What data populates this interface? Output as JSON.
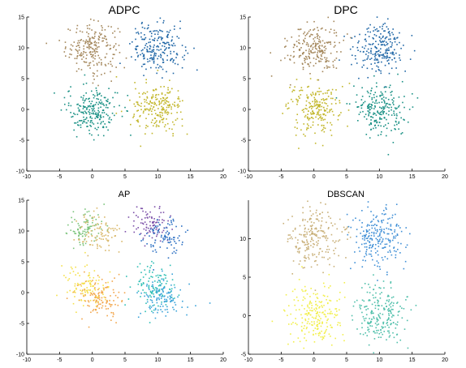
{
  "chart_data": [
    {
      "type": "scatter",
      "title": "ADPC",
      "xlabel": "",
      "ylabel": "",
      "xlim": [
        -10,
        20
      ],
      "ylim": [
        -10,
        15
      ],
      "xticks": [
        -10,
        -5,
        0,
        5,
        10,
        15,
        20
      ],
      "yticks": [
        -10,
        -5,
        0,
        5,
        10,
        15
      ],
      "series": [
        {
          "center": [
            0,
            10
          ],
          "spread": 2.0,
          "n": 220,
          "color": "#a3865a"
        },
        {
          "center": [
            10,
            10
          ],
          "spread": 2.0,
          "n": 220,
          "color": "#1f66a6"
        },
        {
          "center": [
            0,
            0
          ],
          "spread": 2.0,
          "n": 220,
          "color": "#1a9185"
        },
        {
          "center": [
            10,
            0
          ],
          "spread": 2.0,
          "n": 220,
          "color": "#c2b62a"
        }
      ]
    },
    {
      "type": "scatter",
      "title": "DPC",
      "xlabel": "",
      "ylabel": "",
      "xlim": [
        -10,
        20
      ],
      "ylim": [
        -10,
        15
      ],
      "xticks": [
        -10,
        -5,
        0,
        5,
        10,
        15,
        20
      ],
      "yticks": [
        -10,
        -5,
        0,
        5,
        10,
        15
      ],
      "series": [
        {
          "center": [
            0,
            10
          ],
          "spread": 2.0,
          "n": 220,
          "color": "#a3865a"
        },
        {
          "center": [
            10,
            10
          ],
          "spread": 2.0,
          "n": 220,
          "color": "#1f66a6"
        },
        {
          "center": [
            0,
            0
          ],
          "spread": 2.0,
          "n": 220,
          "color": "#c2b62a"
        },
        {
          "center": [
            10,
            0
          ],
          "spread": 2.0,
          "n": 220,
          "color": "#1a9185"
        }
      ]
    },
    {
      "type": "scatter",
      "title": "AP",
      "xlabel": "",
      "ylabel": "",
      "xlim": [
        -10,
        20
      ],
      "ylim": [
        -10,
        15
      ],
      "xticks": [
        -10,
        -5,
        0,
        5,
        10,
        15,
        20
      ],
      "yticks": [
        -10,
        -5,
        0,
        5,
        10,
        15
      ],
      "series": [
        {
          "center": [
            -1,
            10.5
          ],
          "spread": 1.5,
          "n": 90,
          "color": "#7cc47c"
        },
        {
          "center": [
            1,
            9.5
          ],
          "spread": 1.6,
          "n": 90,
          "color": "#d9b86a"
        },
        {
          "center": [
            9,
            11
          ],
          "spread": 1.5,
          "n": 90,
          "color": "#7b4fa8"
        },
        {
          "center": [
            11,
            9
          ],
          "spread": 1.6,
          "n": 90,
          "color": "#2b6fc2"
        },
        {
          "center": [
            -1,
            1
          ],
          "spread": 1.7,
          "n": 110,
          "color": "#f5e04a"
        },
        {
          "center": [
            1,
            -1
          ],
          "spread": 1.7,
          "n": 110,
          "color": "#f2a54a"
        },
        {
          "center": [
            9,
            1
          ],
          "spread": 1.7,
          "n": 110,
          "color": "#2fbfb5"
        },
        {
          "center": [
            11,
            -1
          ],
          "spread": 1.7,
          "n": 110,
          "color": "#3aa3d9"
        }
      ]
    },
    {
      "type": "scatter",
      "title": "DBSCAN",
      "xlabel": "",
      "ylabel": "",
      "xlim": [
        -10,
        20
      ],
      "ylim": [
        -5,
        15
      ],
      "xticks": [
        -10,
        -5,
        0,
        5,
        10,
        15,
        20
      ],
      "yticks": [
        -5,
        0,
        5,
        10
      ],
      "series": [
        {
          "center": [
            0,
            10
          ],
          "spread": 2.0,
          "n": 220,
          "color": "#c9b079"
        },
        {
          "center": [
            10,
            10
          ],
          "spread": 2.0,
          "n": 220,
          "color": "#3f8fd6"
        },
        {
          "center": [
            0,
            0
          ],
          "spread": 2.0,
          "n": 220,
          "color": "#f2ef4a"
        },
        {
          "center": [
            10,
            0
          ],
          "spread": 2.0,
          "n": 220,
          "color": "#4fbfaa"
        }
      ]
    }
  ]
}
